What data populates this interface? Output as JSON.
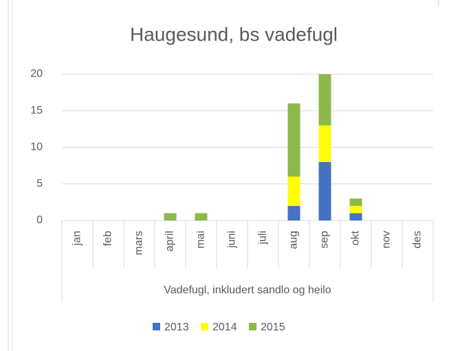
{
  "chart_data": {
    "type": "bar",
    "stacked": true,
    "title": "Haugesund, bs vadefugl",
    "x_label": "Vadefugl, inkludert sandlo og heilo",
    "categories": [
      "jan",
      "feb",
      "mars",
      "april",
      "mai",
      "juni",
      "juli",
      "aug",
      "sep",
      "okt",
      "nov",
      "des"
    ],
    "series": [
      {
        "name": "2013",
        "color": "#4472c4",
        "values": [
          0,
          0,
          0,
          0,
          0,
          0,
          0,
          2,
          8,
          1,
          0,
          0
        ]
      },
      {
        "name": "2014",
        "color": "#ffff00",
        "values": [
          0,
          0,
          0,
          0,
          0,
          0,
          0,
          4,
          5,
          1,
          0,
          0
        ]
      },
      {
        "name": "2015",
        "color": "#8db84a",
        "values": [
          0,
          0,
          0,
          1,
          1,
          0,
          0,
          10,
          7,
          1,
          0,
          0
        ]
      }
    ],
    "ylim": [
      0,
      20
    ],
    "yticks": [
      0,
      5,
      10,
      15,
      20
    ],
    "grid": true,
    "legend": "bottom"
  }
}
